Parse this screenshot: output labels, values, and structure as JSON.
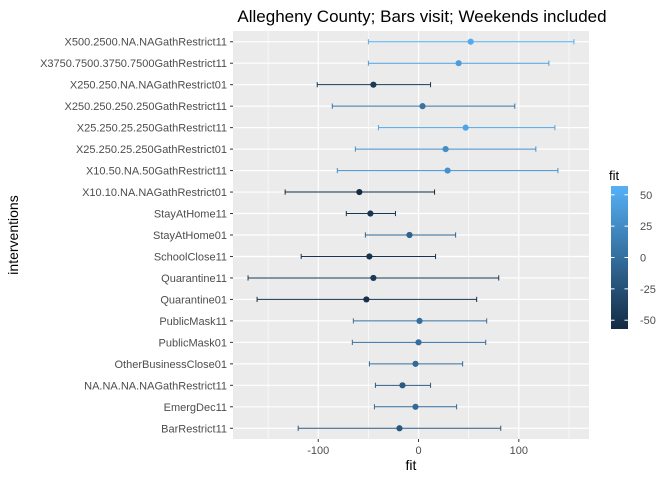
{
  "chart_data": {
    "type": "errorbar-dot",
    "title": "Allegheny County; Bars visit; Weekends included",
    "xlabel": "fit",
    "ylabel": "interventions",
    "xlim": [
      -185,
      170
    ],
    "x_ticks": [
      -100,
      0,
      100
    ],
    "x_tick_labels": [
      "-100",
      "0",
      "100"
    ],
    "grid": true,
    "legend": {
      "title": "fit",
      "position": "right",
      "ticks": [
        50,
        25,
        0,
        -25,
        -50
      ],
      "tick_labels": [
        "50",
        "25",
        "0",
        "-25",
        "-50"
      ],
      "range": [
        -57,
        57
      ],
      "color_low": "#132B43",
      "color_high": "#56B1F7"
    },
    "categories": [
      "X500.2500.NA.NAGathRestrict11",
      "X3750.7500.3750.7500GathRestrict11",
      "X250.250.NA.NAGathRestrict01",
      "X250.250.250.250GathRestrict11",
      "X25.250.25.250GathRestrict11",
      "X25.250.25.250GathRestrict01",
      "X10.50.NA.50GathRestrict11",
      "X10.10.NA.NAGathRestrict01",
      "StayAtHome11",
      "StayAtHome01",
      "SchoolClose11",
      "Quarantine11",
      "Quarantine01",
      "PublicMask11",
      "PublicMask01",
      "OtherBusinessClose01",
      "NA.NA.NA.NAGathRestrict11",
      "EmergDec11",
      "BarRestrict11"
    ],
    "fit": [
      52,
      40,
      -45,
      4,
      47,
      27,
      29,
      -59,
      -48,
      -9,
      -49,
      -45,
      -52,
      1,
      0,
      -3,
      -16,
      -3,
      -19
    ],
    "lower": [
      -50,
      -50,
      -101,
      -86,
      -40,
      -63,
      -81,
      -133,
      -72,
      -53,
      -117,
      -170,
      -161,
      -65,
      -66,
      -49,
      -43,
      -44,
      -120
    ],
    "upper": [
      155,
      130,
      12,
      96,
      136,
      117,
      139,
      16,
      -23,
      37,
      17,
      80,
      58,
      68,
      67,
      44,
      12,
      38,
      82
    ]
  }
}
